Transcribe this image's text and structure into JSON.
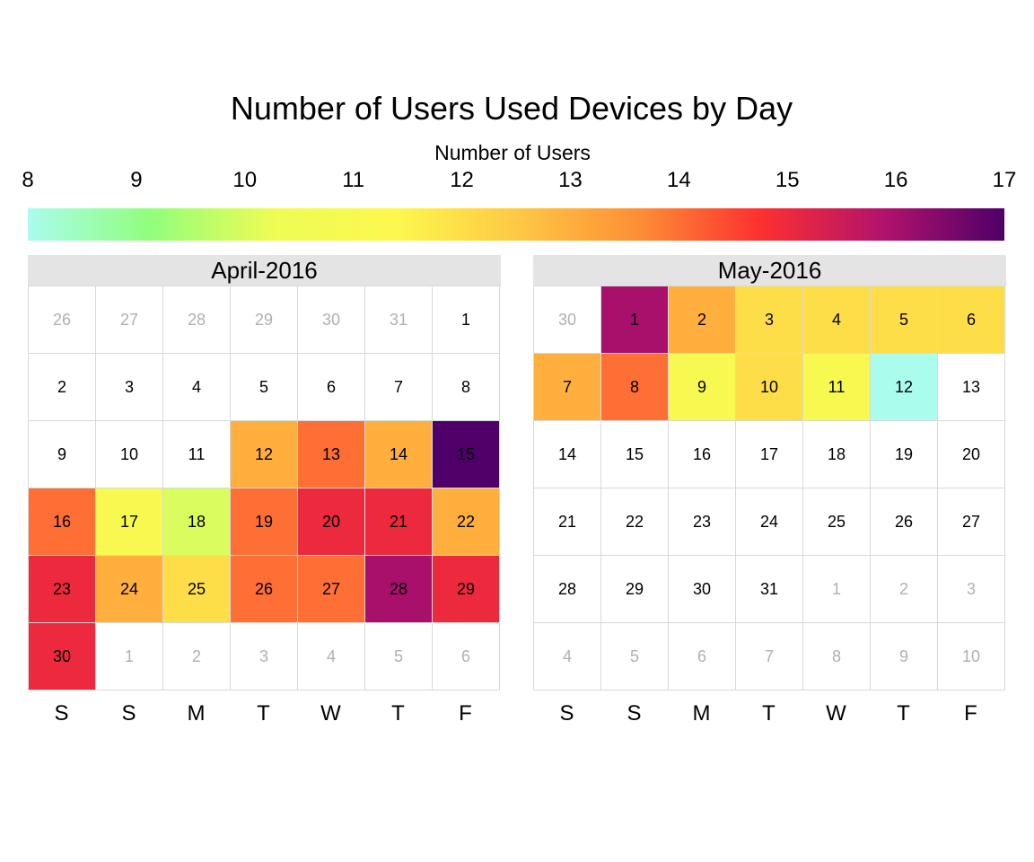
{
  "chart_data": {
    "type": "heatmap",
    "title": "Number of Users Used Devices by Day",
    "legend": {
      "title": "Number of Users",
      "ticks": [
        8,
        9,
        10,
        11,
        12,
        13,
        14,
        15,
        16,
        17
      ],
      "min": 8,
      "max": 17,
      "placement": "top",
      "colors": [
        "#aafcec",
        "#91fe7d",
        "#edfc55",
        "#fdf84e",
        "#fec944",
        "#fd8f36",
        "#fd3030",
        "#b3126c",
        "#4e0068"
      ]
    },
    "weekday_labels": [
      "S",
      "S",
      "M",
      "T",
      "W",
      "T",
      "F"
    ],
    "months": [
      {
        "label": "April-2016",
        "cells": [
          {
            "day": "26",
            "in_month": false,
            "value": null
          },
          {
            "day": "27",
            "in_month": false,
            "value": null
          },
          {
            "day": "28",
            "in_month": false,
            "value": null
          },
          {
            "day": "29",
            "in_month": false,
            "value": null
          },
          {
            "day": "30",
            "in_month": false,
            "value": null
          },
          {
            "day": "31",
            "in_month": false,
            "value": null
          },
          {
            "day": "1",
            "in_month": true,
            "value": null
          },
          {
            "day": "2",
            "in_month": true,
            "value": null
          },
          {
            "day": "3",
            "in_month": true,
            "value": null
          },
          {
            "day": "4",
            "in_month": true,
            "value": null
          },
          {
            "day": "5",
            "in_month": true,
            "value": null
          },
          {
            "day": "6",
            "in_month": true,
            "value": null
          },
          {
            "day": "7",
            "in_month": true,
            "value": null
          },
          {
            "day": "8",
            "in_month": true,
            "value": null
          },
          {
            "day": "9",
            "in_month": true,
            "value": null
          },
          {
            "day": "10",
            "in_month": true,
            "value": null
          },
          {
            "day": "11",
            "in_month": true,
            "value": null
          },
          {
            "day": "12",
            "in_month": true,
            "value": 13
          },
          {
            "day": "13",
            "in_month": true,
            "value": 14
          },
          {
            "day": "14",
            "in_month": true,
            "value": 13
          },
          {
            "day": "15",
            "in_month": true,
            "value": 17
          },
          {
            "day": "16",
            "in_month": true,
            "value": 14
          },
          {
            "day": "17",
            "in_month": true,
            "value": 11
          },
          {
            "day": "18",
            "in_month": true,
            "value": 10
          },
          {
            "day": "19",
            "in_month": true,
            "value": 14
          },
          {
            "day": "20",
            "in_month": true,
            "value": 15
          },
          {
            "day": "21",
            "in_month": true,
            "value": 15
          },
          {
            "day": "22",
            "in_month": true,
            "value": 13
          },
          {
            "day": "23",
            "in_month": true,
            "value": 15
          },
          {
            "day": "24",
            "in_month": true,
            "value": 13
          },
          {
            "day": "25",
            "in_month": true,
            "value": 12
          },
          {
            "day": "26",
            "in_month": true,
            "value": 14
          },
          {
            "day": "27",
            "in_month": true,
            "value": 14
          },
          {
            "day": "28",
            "in_month": true,
            "value": 16
          },
          {
            "day": "29",
            "in_month": true,
            "value": 15
          },
          {
            "day": "30",
            "in_month": true,
            "value": 15
          },
          {
            "day": "1",
            "in_month": false,
            "value": null
          },
          {
            "day": "2",
            "in_month": false,
            "value": null
          },
          {
            "day": "3",
            "in_month": false,
            "value": null
          },
          {
            "day": "4",
            "in_month": false,
            "value": null
          },
          {
            "day": "5",
            "in_month": false,
            "value": null
          },
          {
            "day": "6",
            "in_month": false,
            "value": null
          }
        ]
      },
      {
        "label": "May-2016",
        "cells": [
          {
            "day": "30",
            "in_month": false,
            "value": null
          },
          {
            "day": "1",
            "in_month": true,
            "value": 16
          },
          {
            "day": "2",
            "in_month": true,
            "value": 13
          },
          {
            "day": "3",
            "in_month": true,
            "value": 12
          },
          {
            "day": "4",
            "in_month": true,
            "value": 12
          },
          {
            "day": "5",
            "in_month": true,
            "value": 12
          },
          {
            "day": "6",
            "in_month": true,
            "value": 12
          },
          {
            "day": "7",
            "in_month": true,
            "value": 13
          },
          {
            "day": "8",
            "in_month": true,
            "value": 14
          },
          {
            "day": "9",
            "in_month": true,
            "value": 11
          },
          {
            "day": "10",
            "in_month": true,
            "value": 12
          },
          {
            "day": "11",
            "in_month": true,
            "value": 11
          },
          {
            "day": "12",
            "in_month": true,
            "value": 8
          },
          {
            "day": "13",
            "in_month": true,
            "value": null
          },
          {
            "day": "14",
            "in_month": true,
            "value": null
          },
          {
            "day": "15",
            "in_month": true,
            "value": null
          },
          {
            "day": "16",
            "in_month": true,
            "value": null
          },
          {
            "day": "17",
            "in_month": true,
            "value": null
          },
          {
            "day": "18",
            "in_month": true,
            "value": null
          },
          {
            "day": "19",
            "in_month": true,
            "value": null
          },
          {
            "day": "20",
            "in_month": true,
            "value": null
          },
          {
            "day": "21",
            "in_month": true,
            "value": null
          },
          {
            "day": "22",
            "in_month": true,
            "value": null
          },
          {
            "day": "23",
            "in_month": true,
            "value": null
          },
          {
            "day": "24",
            "in_month": true,
            "value": null
          },
          {
            "day": "25",
            "in_month": true,
            "value": null
          },
          {
            "day": "26",
            "in_month": true,
            "value": null
          },
          {
            "day": "27",
            "in_month": true,
            "value": null
          },
          {
            "day": "28",
            "in_month": true,
            "value": null
          },
          {
            "day": "29",
            "in_month": true,
            "value": null
          },
          {
            "day": "30",
            "in_month": true,
            "value": null
          },
          {
            "day": "31",
            "in_month": true,
            "value": null
          },
          {
            "day": "1",
            "in_month": false,
            "value": null
          },
          {
            "day": "2",
            "in_month": false,
            "value": null
          },
          {
            "day": "3",
            "in_month": false,
            "value": null
          },
          {
            "day": "4",
            "in_month": false,
            "value": null
          },
          {
            "day": "5",
            "in_month": false,
            "value": null
          },
          {
            "day": "6",
            "in_month": false,
            "value": null
          },
          {
            "day": "7",
            "in_month": false,
            "value": null
          },
          {
            "day": "8",
            "in_month": false,
            "value": null
          },
          {
            "day": "9",
            "in_month": false,
            "value": null
          },
          {
            "day": "10",
            "in_month": false,
            "value": null
          }
        ]
      }
    ]
  }
}
